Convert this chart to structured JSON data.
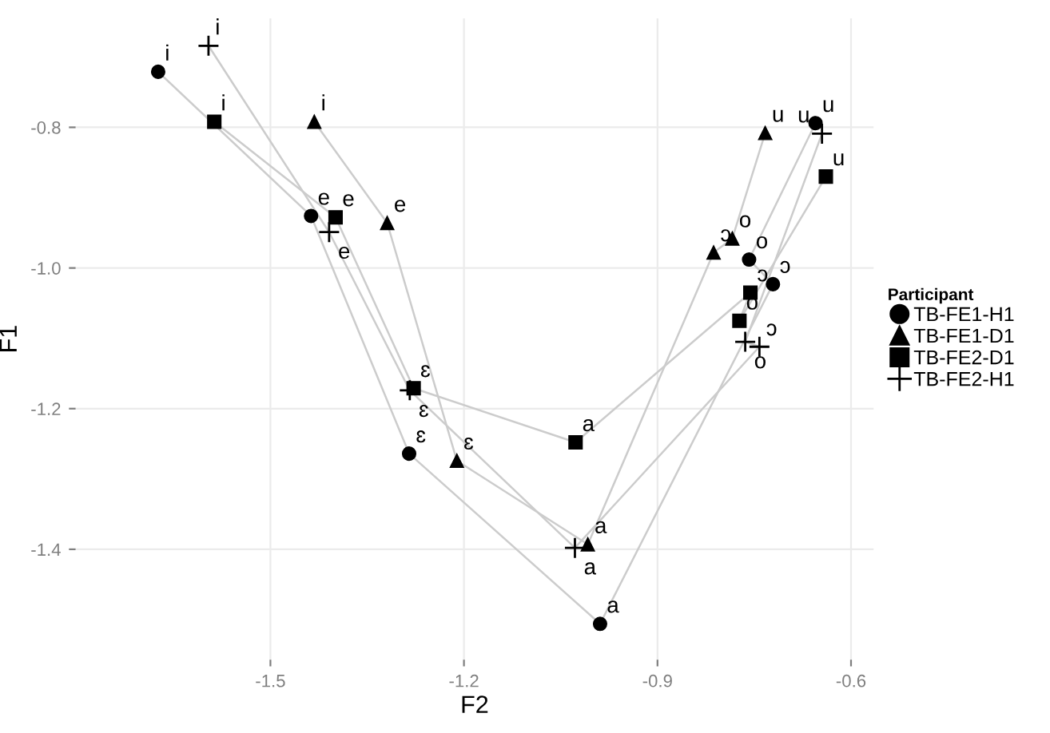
{
  "chart_data": {
    "type": "scatter",
    "xlabel": "F2",
    "ylabel": "F1",
    "legend_title": "Participant",
    "legend": "right",
    "grid": true,
    "line_style": "solid",
    "xlim": [
      -1.802,
      -0.565
    ],
    "xticks": [
      -1.5,
      -1.2,
      -0.9,
      -0.6
    ],
    "ylim": [
      -1.557,
      -0.645
    ],
    "yticks": [
      {
        "value": -1.4,
        "label": "-1.4"
      },
      {
        "value": -1.2,
        "label": "-1.2"
      },
      {
        "value": -1.0,
        "label": "-1.0"
      },
      {
        "value": -0.8,
        "label": "-0.8"
      }
    ],
    "series": [
      {
        "name": "TB-FE1-H1",
        "color": "#000000",
        "marker": "circle",
        "x": [
          -1.674,
          -1.437,
          -1.285,
          -0.989,
          -0.721,
          -0.758,
          -0.655
        ],
        "values": [
          -0.721,
          -0.926,
          -1.264,
          -1.506,
          -1.023,
          -0.988,
          -0.794
        ],
        "value_labels": [
          "i",
          "e",
          "ɛ",
          "a",
          "ɔ",
          "o",
          "u"
        ]
      },
      {
        "name": "TB-FE1-D1",
        "color": "#000000",
        "marker": "triangle",
        "x": [
          -1.432,
          -1.319,
          -1.211,
          -1.008,
          -0.813,
          -0.784,
          -0.733
        ],
        "values": [
          -0.792,
          -0.936,
          -1.274,
          -1.393,
          -0.978,
          -0.958,
          -0.808
        ],
        "value_labels": [
          "i",
          "e",
          "ɛ",
          "a",
          "ɔ",
          "o",
          "u"
        ]
      },
      {
        "name": "TB-FE2-D1",
        "color": "#000000",
        "marker": "square",
        "x": [
          -1.587,
          -1.399,
          -1.278,
          -1.027,
          -0.756,
          -0.773,
          -0.639
        ],
        "values": [
          -0.792,
          -0.928,
          -1.171,
          -1.248,
          -1.035,
          -1.075,
          -0.87
        ],
        "value_labels": [
          "i",
          "e",
          "ɛ",
          "a",
          "ɔ",
          "o",
          "u"
        ]
      },
      {
        "name": "TB-FE2-H1",
        "color": "#000000",
        "marker": "cross",
        "x": [
          -1.596,
          -1.409,
          -1.284,
          -1.028,
          -0.742,
          -0.764,
          -0.645
        ],
        "values": [
          -0.684,
          -0.949,
          -1.174,
          -1.398,
          -1.112,
          -1.105,
          -0.809
        ],
        "value_labels": [
          "i",
          "e",
          "ɛ",
          "a",
          "ɔ",
          "o",
          "u"
        ]
      }
    ]
  }
}
